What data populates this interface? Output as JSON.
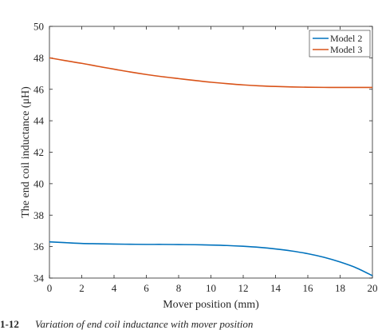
{
  "chart_data": {
    "type": "line",
    "title": "",
    "xlabel": "Mover position (mm)",
    "ylabel": "The end coil inductance (μH)",
    "xlim": [
      0,
      20
    ],
    "ylim": [
      34,
      50
    ],
    "xticks": [
      "0",
      "2",
      "4",
      "6",
      "8",
      "10",
      "12",
      "14",
      "16",
      "18",
      "20"
    ],
    "yticks": [
      "34",
      "36",
      "38",
      "40",
      "42",
      "44",
      "46",
      "48",
      "50"
    ],
    "grid": false,
    "legend_position": "top-right",
    "series": [
      {
        "name": "Model 2",
        "color": "#0072BD",
        "x": [
          0,
          1,
          2,
          3,
          4,
          5,
          6,
          7,
          8,
          9,
          10,
          11,
          12,
          13,
          14,
          15,
          16,
          17,
          18,
          19,
          20
        ],
        "y": [
          36.3,
          36.25,
          36.2,
          36.18,
          36.16,
          36.15,
          36.14,
          36.14,
          36.13,
          36.12,
          36.1,
          36.07,
          36.02,
          35.95,
          35.85,
          35.72,
          35.55,
          35.32,
          35.02,
          34.65,
          34.15
        ]
      },
      {
        "name": "Model 3",
        "color": "#D95319",
        "x": [
          0,
          1,
          2,
          3,
          4,
          5,
          6,
          7,
          8,
          9,
          10,
          11,
          12,
          13,
          14,
          15,
          16,
          17,
          18,
          19,
          20
        ],
        "y": [
          48.0,
          47.82,
          47.65,
          47.46,
          47.28,
          47.1,
          46.94,
          46.8,
          46.68,
          46.56,
          46.45,
          46.36,
          46.28,
          46.22,
          46.18,
          46.15,
          46.13,
          46.12,
          46.12,
          46.12,
          46.12
        ]
      }
    ]
  },
  "caption": {
    "number": "1-12",
    "text": "Variation of end coil inductance with mover position"
  }
}
